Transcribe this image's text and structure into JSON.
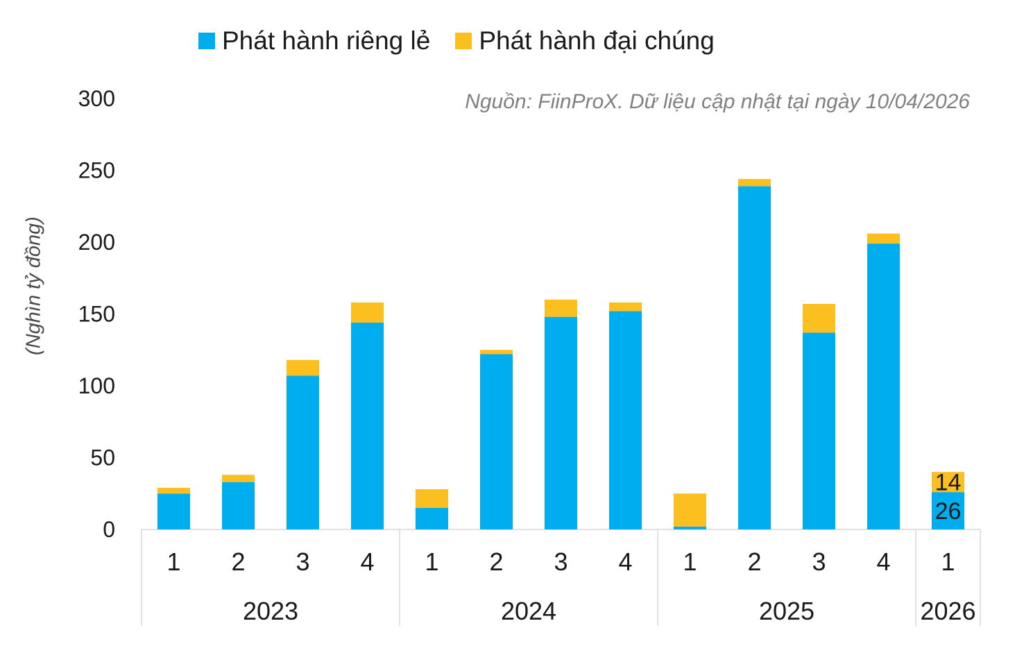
{
  "legend": {
    "series_1": "Phát hành riêng lẻ",
    "series_2": "Phát hành đại chúng"
  },
  "source_note": "Nguồn: FiinProX. Dữ liệu cập nhật tại ngày 10/04/2026",
  "colors": {
    "series_1": "#00AEEF",
    "series_2": "#FBBF1F",
    "axis_text": "#1a1a1a",
    "gridline": "#d9d9d9"
  },
  "chart_data": {
    "type": "bar",
    "stacked": true,
    "ylabel": "(Nghìn tỷ đồng)",
    "ylim": [
      0,
      300
    ],
    "yticks": [
      0,
      50,
      100,
      150,
      200,
      250,
      300
    ],
    "categories": [
      "1",
      "2",
      "3",
      "4",
      "1",
      "2",
      "3",
      "4",
      "1",
      "2",
      "3",
      "4",
      "1"
    ],
    "groups": [
      {
        "label": "2023",
        "count": 4
      },
      {
        "label": "2024",
        "count": 4
      },
      {
        "label": "2025",
        "count": 4
      },
      {
        "label": "2026",
        "count": 1
      }
    ],
    "series": [
      {
        "name": "Phát hành riêng lẻ",
        "values": [
          25,
          33,
          107,
          144,
          15,
          122,
          148,
          152,
          2,
          239,
          137,
          199,
          26
        ]
      },
      {
        "name": "Phát hành đại chúng",
        "values": [
          4,
          5,
          11,
          14,
          13,
          3,
          12,
          6,
          23,
          5,
          20,
          7,
          14
        ]
      }
    ],
    "data_labels": [
      {
        "index": 12,
        "series": 0,
        "text": "26"
      },
      {
        "index": 12,
        "series": 1,
        "text": "14"
      }
    ]
  }
}
